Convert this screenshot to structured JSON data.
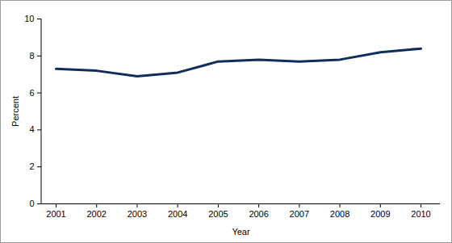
{
  "chart_data": {
    "type": "line",
    "x": [
      2001,
      2002,
      2003,
      2004,
      2005,
      2006,
      2007,
      2008,
      2009,
      2010
    ],
    "values": [
      7.3,
      7.2,
      6.9,
      7.1,
      7.7,
      7.8,
      7.7,
      7.8,
      8.2,
      8.4
    ],
    "color": "#0f2e5c",
    "x_label": "Year",
    "y_label": "Percent",
    "xlim": [
      2001,
      2010
    ],
    "xticks": [
      2001,
      2002,
      2003,
      2004,
      2005,
      2006,
      2007,
      2008,
      2009,
      2010
    ],
    "ylim": [
      0,
      10
    ],
    "yticks": [
      0,
      2,
      4,
      6,
      8,
      10
    ],
    "grid": false
  }
}
